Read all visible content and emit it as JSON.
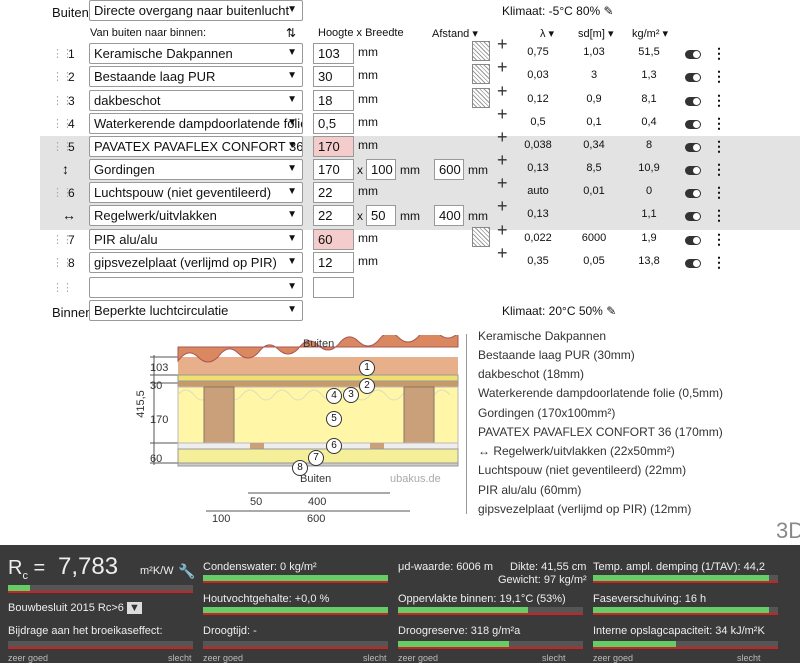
{
  "outside": {
    "label": "Buiten:",
    "value": "Directe overgang naar buitenlucht",
    "climate": "Klimaat: -5°C 80%"
  },
  "inside": {
    "label": "Binnen:",
    "value": "Beperkte luchtcirculatie",
    "climate": "Klimaat: 20°C 50%"
  },
  "headers": {
    "layers": "Van buiten naar binnen:",
    "dims": "Hoogte x Breedte",
    "distance": "Afstand",
    "lambda": "λ",
    "sd": "sd[m]",
    "mass": "kg/m²"
  },
  "unit_mm": "mm",
  "times": "x",
  "layers": [
    {
      "n": "1",
      "name": "Keramische Dakpannen",
      "h": "103",
      "lambda": "0,75",
      "sd": "1,03",
      "kg": "51,5"
    },
    {
      "n": "2",
      "name": "Bestaande laag PUR",
      "h": "30",
      "lambda": "0,03",
      "sd": "3",
      "kg": "1,3"
    },
    {
      "n": "3",
      "name": "dakbeschot",
      "h": "18",
      "lambda": "0,12",
      "sd": "0,9",
      "kg": "8,1"
    },
    {
      "n": "4",
      "name": "Waterkerende dampdoorlatende folie",
      "h": "0,5",
      "lambda": "0,5",
      "sd": "0,1",
      "kg": "0,4"
    },
    {
      "n": "5",
      "name": "PAVATEX PAVAFLEX CONFORT 36",
      "h": "170",
      "lambda": "0,038",
      "sd": "0,34",
      "kg": "8"
    },
    {
      "n": "",
      "name": "Gordingen",
      "h": "170",
      "w": "100",
      "d": "600",
      "lambda": "0,13",
      "sd": "8,5",
      "kg": "10,9"
    },
    {
      "n": "6",
      "name": "Luchtspouw (niet geventileerd)",
      "h": "22",
      "lambda": "auto",
      "sd": "0,01",
      "kg": "0"
    },
    {
      "n": "",
      "name": "Regelwerk/uitvlakken",
      "h": "22",
      "w": "50",
      "d": "400",
      "lambda": "0,13",
      "sd": "",
      "kg": "1,1"
    },
    {
      "n": "7",
      "name": "PIR alu/alu",
      "h": "60",
      "lambda": "0,022",
      "sd": "6000",
      "kg": "1,9"
    },
    {
      "n": "8",
      "name": "gipsvezelplaat (verlijmd op PIR)",
      "h": "12",
      "lambda": "0,35",
      "sd": "0,05",
      "kg": "13,8"
    }
  ],
  "diagram": {
    "top": "Buiten",
    "bottom": "Buiten",
    "watermark": "ubakus.de",
    "total": "415,5",
    "dims_left": [
      "103",
      "30",
      "170",
      "60"
    ],
    "scale_top": [
      "50",
      "400"
    ],
    "scale_bottom": [
      "100",
      "600"
    ],
    "legend": [
      "Keramische Dakpannen",
      "Bestaande laag PUR (30mm)",
      "dakbeschot (18mm)",
      "Waterkerende dampdoorlatende folie (0,5mm)",
      "Gordingen (170x100mm²)",
      "PAVATEX PAVAFLEX CONFORT 36 (170mm)",
      "↔ Regelwerk/uitvlakken (22x50mm²)",
      "Luchtspouw (niet geventileerd) (22mm)",
      "PIR alu/alu (60mm)",
      "gipsvezelplaat (verlijmd op PIR) (12mm)"
    ],
    "circles": [
      "1",
      "2",
      "3",
      "4",
      "5",
      "6",
      "7",
      "8"
    ],
    "label_3d": "3D"
  },
  "results": {
    "rc_label": "R",
    "rc_sub": "c",
    "rc_eq": "=",
    "rc_value": "7,783",
    "rc_unit": "m²K/W",
    "rc_fill": 0.12,
    "standard": "Bouwbesluit 2015 Rc>6",
    "greenhouse": "Bijdrage aan het broeikaseffect:",
    "condens": "Condenswater: 0 kg/m²",
    "wood": "Houtvochtgehalte: +0,0 %",
    "dry": "Droogtijd: -",
    "mud": "μd-waarde: 6006 m",
    "thickness": "Dikte: 41,55 cm",
    "weight": "Gewicht: 97 kg/m²",
    "surface": "Oppervlakte binnen: 19,1°C (53%)",
    "reserve": "Droogreserve: 318 g/m²a",
    "damping": "Temp. ampl. demping (1/TAV): 44,2",
    "phase": "Faseverschuiving: 16 h",
    "capacity": "Interne opslagcapaciteit: 34 kJ/m²K",
    "good": "zeer goed",
    "bad": "slecht"
  }
}
